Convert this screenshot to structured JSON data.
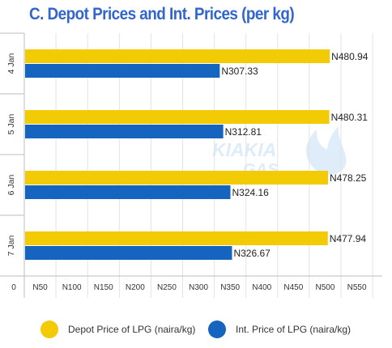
{
  "title": "C. Depot Prices and Int. Prices (per kg)",
  "colors": {
    "title": "#3366CC",
    "depot": "#F2CB05",
    "int": "#1565C0",
    "grid": "#E3E3E3",
    "axis": "#BDBDBD"
  },
  "watermark": {
    "line1": "KIAKIA",
    "line2": "GAS",
    "icon": "flame-logo"
  },
  "chart_data": {
    "type": "bar",
    "orientation": "horizontal",
    "categories": [
      "4 Jan",
      "5 Jan",
      "6 Jan",
      "7 Jan"
    ],
    "series": [
      {
        "name": "Depot Price of LPG (naira/kg)",
        "values": [
          480.94,
          480.31,
          478.25,
          477.94
        ],
        "labels": [
          "N480.94",
          "N480.31",
          "N478.25",
          "N477.94"
        ]
      },
      {
        "name": "Int. Price of LPG (naira/kg)",
        "values": [
          307.33,
          312.81,
          324.16,
          326.67
        ],
        "labels": [
          "N307.33",
          "N312.81",
          "N324.16",
          "N326.67"
        ]
      }
    ],
    "xlim": [
      0,
      575
    ],
    "x_ticks": [
      50,
      100,
      150,
      200,
      250,
      300,
      350,
      400,
      450,
      500,
      550
    ],
    "x_tick_labels": [
      "N50",
      "N100",
      "N150",
      "N200",
      "N250",
      "N300",
      "N350",
      "N400",
      "N450",
      "N500",
      "N550"
    ],
    "origin_label": "0",
    "grid": true,
    "legend_position": "bottom"
  }
}
